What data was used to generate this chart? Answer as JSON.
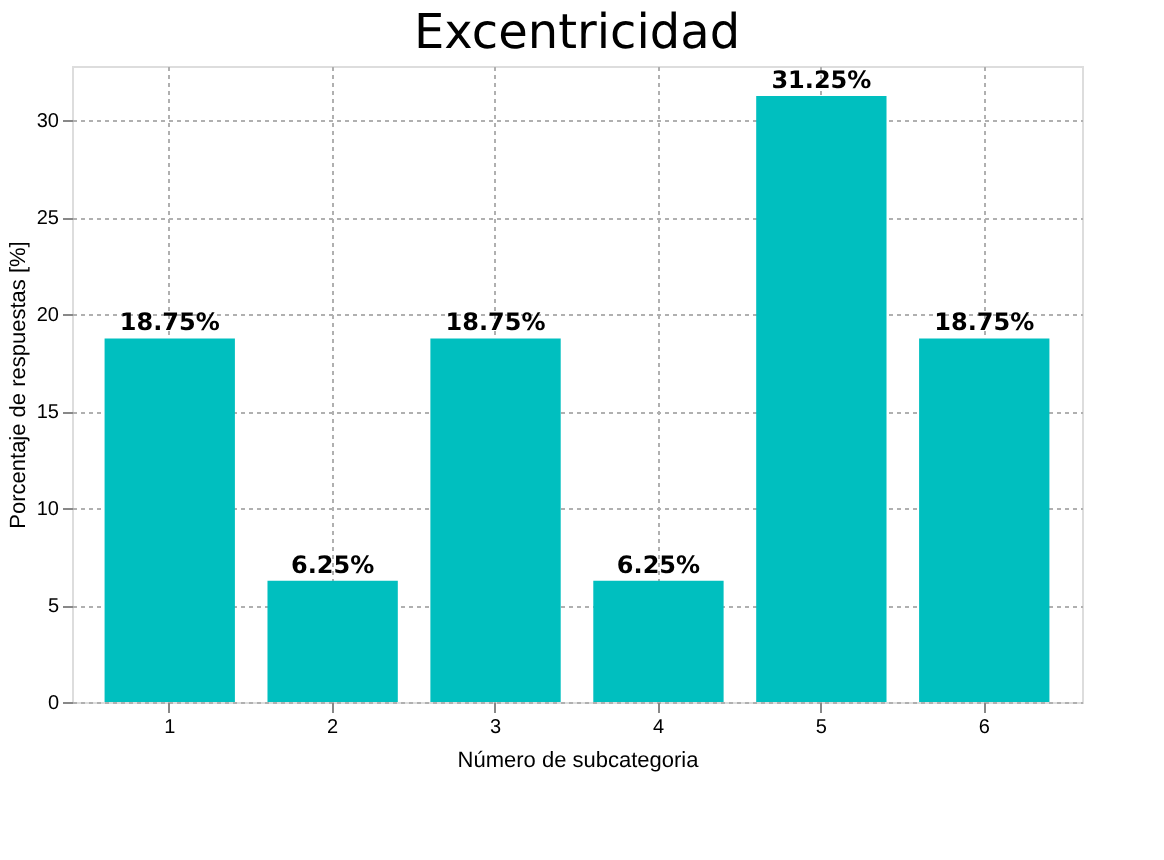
{
  "chart_data": {
    "type": "bar",
    "title": "Excentricidad",
    "xlabel": "Número de subcategoria",
    "ylabel": "Porcentaje de respuestas [%]",
    "categories": [
      "1",
      "2",
      "3",
      "4",
      "5",
      "6"
    ],
    "values": [
      18.75,
      6.25,
      18.75,
      6.25,
      31.25,
      18.75
    ],
    "value_labels": [
      "18.75%",
      "6.25%",
      "18.75%",
      "6.25%",
      "31.25%",
      "18.75%"
    ],
    "color": "#00bfbf",
    "ylim": [
      0,
      32.8
    ],
    "yticks": [
      0,
      5,
      10,
      15,
      20,
      25,
      30
    ],
    "grid": true
  }
}
